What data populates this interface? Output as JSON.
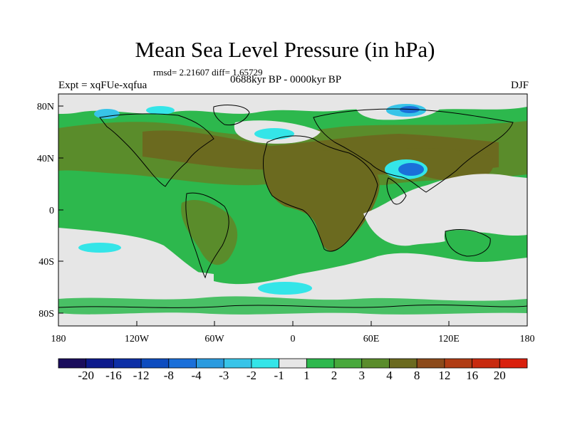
{
  "title": "Mean Sea Level Pressure (in hPa)",
  "stats": "rmsd= 2.21607 diff= 1.65729",
  "experiment": "Expt = xqFUe-xqfua",
  "period": "0688kyr BP - 0000kyr BP",
  "season": "DJF",
  "map": {
    "lat_ticks": [
      "80N",
      "40N",
      "0",
      "40S",
      "80S"
    ],
    "lon_ticks": [
      "180",
      "120W",
      "60W",
      "0",
      "60E",
      "120E",
      "180"
    ]
  },
  "colorbar": {
    "labels": [
      "-20",
      "-16",
      "-12",
      "-8",
      "-4",
      "-3",
      "-2",
      "-1",
      "1",
      "2",
      "3",
      "4",
      "8",
      "12",
      "16",
      "20"
    ],
    "colors": [
      "#1a0d5c",
      "#0d1a8c",
      "#0d2fa6",
      "#0d4cbf",
      "#1a6fd9",
      "#2b9bdf",
      "#38c4e8",
      "#34e5e8",
      "#e6e6e6",
      "#2db84d",
      "#48a83c",
      "#5a8c2b",
      "#6b6a1f",
      "#8c4a1a",
      "#b03c14",
      "#c82a0f",
      "#d9200d"
    ]
  },
  "colors": {
    "ocean_neutral": "#e6e6e6",
    "positive_1_2": "#2db84d",
    "positive_2_3": "#48a83c",
    "positive_3_4": "#5a8c2b",
    "positive_4_8": "#6b6a1f",
    "negative_light": "#34e5e8",
    "negative_mid": "#38c4e8",
    "negative_strong": "#1a6fd9"
  }
}
